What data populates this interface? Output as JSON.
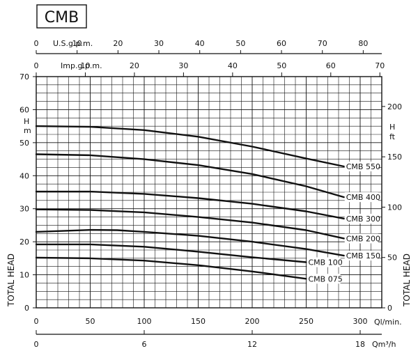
{
  "badge": "CMB",
  "chart_data": {
    "type": "line",
    "title": "CMB",
    "ylabel_left": "TOTAL HEAD",
    "yunit_left": "H m",
    "ylabel_right": "TOTAL HEAD",
    "yunit_right": "H ft",
    "xunit_bottom_lmin": "Ql/min.",
    "xunit_bottom_m3h": "Qm³/h",
    "xunit_top_us": "U.S.g.p.m.",
    "xunit_top_imp": "Imp.g.p.m.",
    "xlim_lmin": [
      0,
      320
    ],
    "ylim_m": [
      0,
      70
    ],
    "grid": true,
    "ticks_lmin": [
      "0",
      "50",
      "100",
      "150",
      "200",
      "250",
      "300"
    ],
    "ticks_m3h": [
      "0",
      "6",
      "12",
      "18"
    ],
    "ticks_us": [
      "0",
      "10",
      "20",
      "30",
      "40",
      "50",
      "60",
      "70",
      "80"
    ],
    "ticks_imp": [
      "0",
      "10",
      "20",
      "30",
      "40",
      "50",
      "60",
      "70"
    ],
    "ticks_m": [
      "0",
      "10",
      "20",
      "30",
      "40",
      "50",
      "60",
      "70"
    ],
    "ticks_ft": [
      "0",
      "50",
      "100",
      "150",
      "200"
    ],
    "series": [
      {
        "name": "CMB 550",
        "x": [
          0,
          50,
          100,
          150,
          200,
          250,
          285
        ],
        "y": [
          55,
          54.8,
          53.8,
          51.8,
          48.8,
          45.2,
          42.8
        ]
      },
      {
        "name": "CMB 400",
        "x": [
          0,
          50,
          100,
          150,
          200,
          250,
          285
        ],
        "y": [
          46.5,
          46.2,
          45,
          43.2,
          40.5,
          36.8,
          33.5
        ]
      },
      {
        "name": "CMB 300",
        "x": [
          0,
          50,
          100,
          150,
          200,
          250,
          285
        ],
        "y": [
          35.2,
          35.2,
          34.5,
          33.2,
          31.5,
          29.2,
          27
        ]
      },
      {
        "name": "CMB 200",
        "x": [
          0,
          50,
          100,
          150,
          200,
          250,
          285
        ],
        "y": [
          29.8,
          29.6,
          28.9,
          27.5,
          25.8,
          23.5,
          21
        ]
      },
      {
        "name": "CMB 150",
        "x": [
          0,
          50,
          75,
          100,
          150,
          200,
          250,
          285
        ],
        "y": [
          23,
          23.6,
          23.5,
          23,
          21.8,
          20,
          17.8,
          15.8
        ]
      },
      {
        "name": "CMB 100",
        "x": [
          0,
          50,
          100,
          150,
          200,
          250
        ],
        "y": [
          19.2,
          19.2,
          18.5,
          17,
          15.3,
          13.8
        ]
      },
      {
        "name": "CMB 075",
        "x": [
          0,
          50,
          100,
          150,
          200,
          250
        ],
        "y": [
          15.2,
          15,
          14.3,
          12.9,
          11,
          8.8
        ]
      }
    ]
  }
}
